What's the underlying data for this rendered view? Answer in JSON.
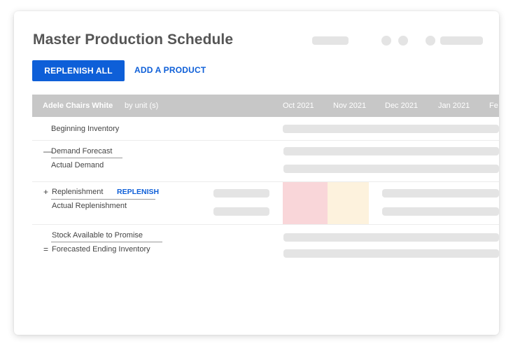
{
  "page": {
    "title": "Master Production Schedule"
  },
  "toolbar": {
    "replenish_all_label": "REPLENISH ALL",
    "add_product_label": "ADD A PRODUCT"
  },
  "table": {
    "product_name": "Adele Chairs White",
    "unit_label": "by unit (s)",
    "months": [
      "Oct 2021",
      "Nov 2021",
      "Dec 2021",
      "Jan 2021",
      "Fe"
    ]
  },
  "rows": {
    "beginning_inventory": "Beginning Inventory",
    "demand_forecast_symbol": "—",
    "demand_forecast": "Demand Forecast",
    "actual_demand": "Actual Demand",
    "replenishment_symbol": "+",
    "replenishment": "Replenishment",
    "replenish_link": "REPLENISH",
    "actual_replenishment": "Actual Replenishment",
    "stock_available": "Stock Available to Promise",
    "forecasted_ending_symbol": "=",
    "forecasted_ending": "Forecasted Ending Inventory"
  },
  "colors": {
    "accent": "#0e5fd8",
    "header_bg": "#c7c7c7",
    "highlight_red": "#f9d6d9",
    "highlight_yellow": "#fdf2dd",
    "skeleton": "#e4e4e4"
  }
}
